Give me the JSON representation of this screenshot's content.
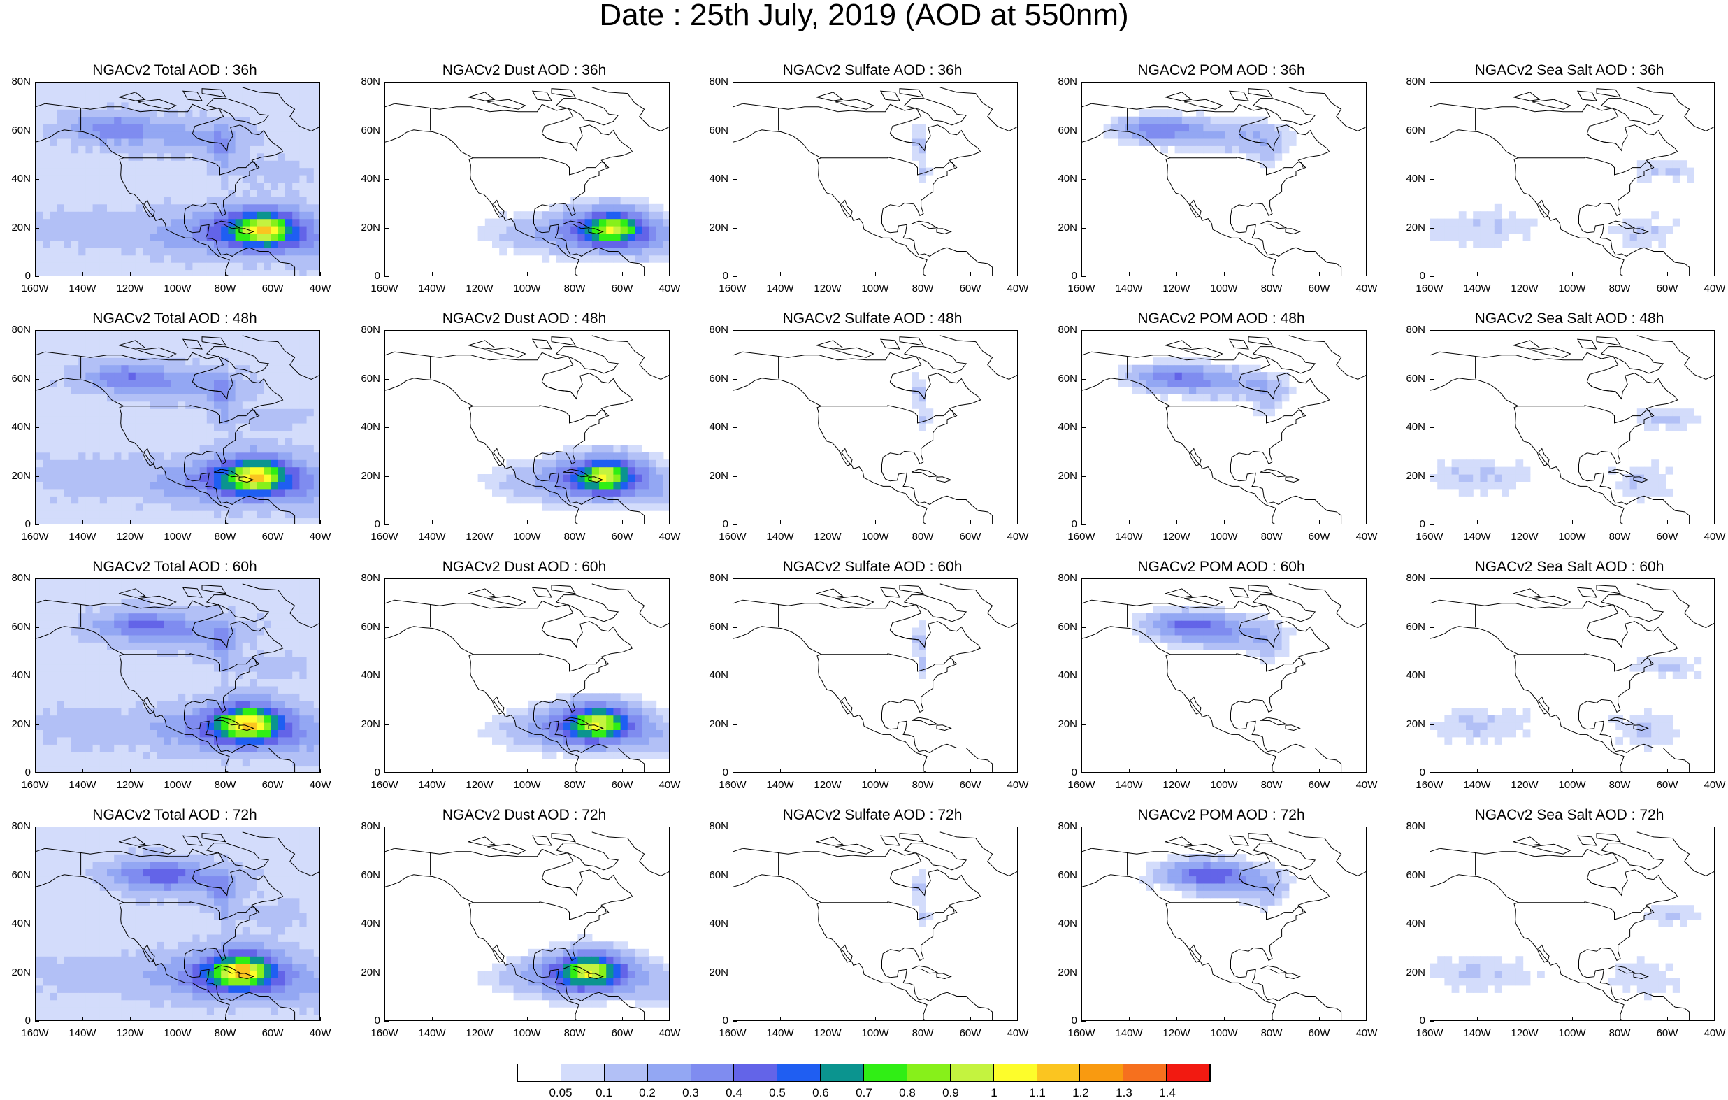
{
  "title": "Date : 25th July, 2019 (AOD at 550nm)",
  "panels": [
    {
      "title": "NGACv2 Total AOD : 36h",
      "species": "total"
    },
    {
      "title": "NGACv2 Dust AOD : 36h",
      "species": "dust"
    },
    {
      "title": "NGACv2 Sulfate AOD : 36h",
      "species": "sulfate"
    },
    {
      "title": "NGACv2 POM AOD : 36h",
      "species": "pom"
    },
    {
      "title": "NGACv2 Sea Salt AOD : 36h",
      "species": "seasalt"
    },
    {
      "title": "NGACv2 Total AOD : 48h",
      "species": "total"
    },
    {
      "title": "NGACv2 Dust AOD : 48h",
      "species": "dust"
    },
    {
      "title": "NGACv2 Sulfate AOD : 48h",
      "species": "sulfate"
    },
    {
      "title": "NGACv2 POM AOD : 48h",
      "species": "pom"
    },
    {
      "title": "NGACv2 Sea Salt AOD : 48h",
      "species": "seasalt"
    },
    {
      "title": "NGACv2 Total AOD : 60h",
      "species": "total"
    },
    {
      "title": "NGACv2 Dust AOD : 60h",
      "species": "dust"
    },
    {
      "title": "NGACv2 Sulfate AOD : 60h",
      "species": "sulfate"
    },
    {
      "title": "NGACv2 POM AOD : 60h",
      "species": "pom"
    },
    {
      "title": "NGACv2 Sea Salt AOD : 60h",
      "species": "seasalt"
    },
    {
      "title": "NGACv2 Total AOD : 72h",
      "species": "total"
    },
    {
      "title": "NGACv2 Dust AOD : 72h",
      "species": "dust"
    },
    {
      "title": "NGACv2 Sulfate AOD : 72h",
      "species": "sulfate"
    },
    {
      "title": "NGACv2 POM AOD : 72h",
      "species": "pom"
    },
    {
      "title": "NGACv2 Sea Salt  AOD : 72h",
      "species": "seasalt"
    }
  ],
  "axes": {
    "y_ticks": [
      "0",
      "20N",
      "40N",
      "60N",
      "80N"
    ],
    "x_ticks": [
      "160W",
      "140W",
      "120W",
      "100W",
      "80W",
      "60W",
      "40W"
    ]
  },
  "colorbar": {
    "labels": [
      "0.05",
      "0.1",
      "0.2",
      "0.3",
      "0.4",
      "0.5",
      "0.6",
      "0.7",
      "0.8",
      "0.9",
      "1",
      "1.1",
      "1.2",
      "1.3",
      "1.4"
    ],
    "colors": [
      "#ffffff",
      "#d3dcfb",
      "#b2c0f6",
      "#93a7f3",
      "#7f8cf0",
      "#6364e8",
      "#1f5ef2",
      "#0b948f",
      "#30ee15",
      "#87f01a",
      "#c4f33f",
      "#fdfd2b",
      "#fbc520",
      "#f99a10",
      "#f6701e",
      "#f21a11"
    ]
  },
  "map_features": {
    "land": "North America outline",
    "lon_range": [
      -160,
      -40
    ],
    "lat_range": [
      0,
      80
    ]
  }
}
